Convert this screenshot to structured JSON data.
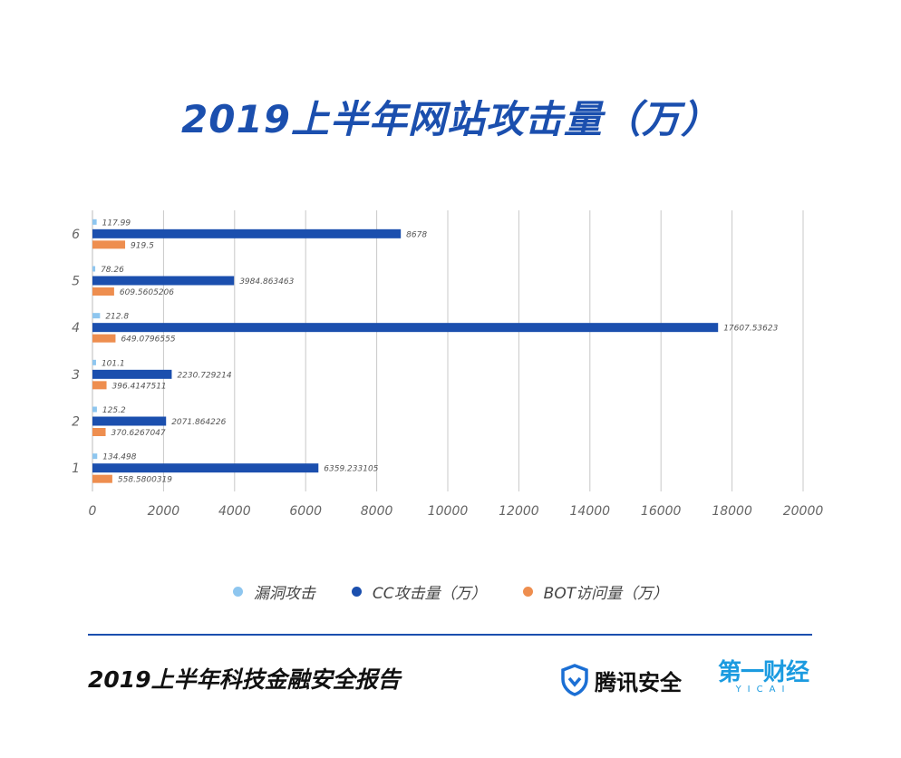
{
  "header": {
    "title": "2019上半年网站攻击量（万）"
  },
  "chart_data": {
    "type": "bar",
    "orientation": "horizontal",
    "categories": [
      "1",
      "2",
      "3",
      "4",
      "5",
      "6"
    ],
    "series": [
      {
        "name": "漏洞攻击",
        "color": "#8ec6ef",
        "values": [
          134.498,
          125.2,
          101.1,
          212.8,
          78.26,
          117.99
        ],
        "labels": [
          "134.498",
          "125.2",
          "101.1",
          "212.8",
          "78.26",
          "117.99"
        ]
      },
      {
        "name": "CC攻击量（万）",
        "color": "#1b4fae",
        "values": [
          6359.233105,
          2071.864226,
          2230.729214,
          17607.53623,
          3984.863463,
          8678
        ],
        "labels": [
          "6359.233105",
          "2071.864226",
          "2230.729214",
          "17607.53623",
          "3984.863463",
          "8678"
        ]
      },
      {
        "name": "BOT访问量（万）",
        "color": "#ee8e4f",
        "values": [
          558.5800319,
          370.6267047,
          396.4147511,
          649.0796555,
          609.5605206,
          919.5
        ],
        "labels": [
          "558.5800319",
          "370.6267047",
          "396.4147511",
          "649.0796555",
          "609.5605206",
          "919.5"
        ]
      }
    ],
    "xlim": [
      0,
      20000
    ],
    "xticks": [
      0,
      2000,
      4000,
      6000,
      8000,
      10000,
      12000,
      14000,
      16000,
      18000,
      20000
    ],
    "xtick_labels": [
      "0",
      "2000",
      "4000",
      "6000",
      "8000",
      "10000",
      "12000",
      "14000",
      "16000",
      "18000",
      "20000"
    ],
    "grid": true,
    "legend_position": "bottom"
  },
  "footer": {
    "report_title": "2019上半年科技金融安全报告",
    "brand_tencent": "腾讯安全",
    "brand_yicai": "第一财经",
    "brand_yicai_sub": "YICAI"
  }
}
